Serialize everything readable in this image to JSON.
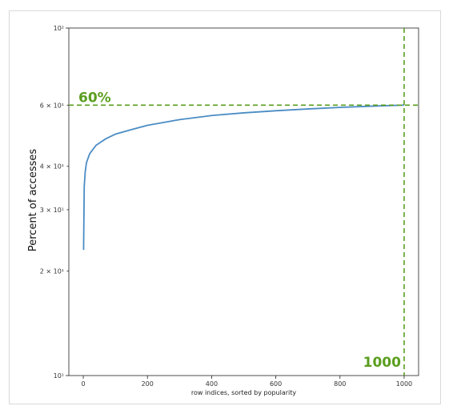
{
  "chart_data": {
    "type": "line",
    "xlabel": "row indices, sorted by popularity",
    "ylabel": "Percent of accesses",
    "xlim": [
      -45,
      1045
    ],
    "ylim": [
      10,
      100
    ],
    "yscale": "log",
    "grid": false,
    "x_ticks": [
      0,
      200,
      400,
      600,
      800,
      1000
    ],
    "x_tick_labels": [
      "0",
      "200",
      "400",
      "600",
      "800",
      "1000"
    ],
    "y_ticks": [
      10,
      20,
      30,
      40,
      60,
      100
    ],
    "y_tick_labels": [
      "10¹",
      "2 × 10¹",
      "3 × 10¹",
      "4 × 10¹",
      "6 × 10¹",
      "10²"
    ],
    "series": [
      {
        "color": "#4a8cc4",
        "x": [
          1,
          3,
          6,
          10,
          20,
          40,
          70,
          100,
          150,
          200,
          300,
          400,
          500,
          600,
          700,
          800,
          900,
          1000
        ],
        "y": [
          23,
          35,
          38.5,
          41,
          43.5,
          46,
          48,
          49.5,
          51,
          52.5,
          54.5,
          56,
          57,
          57.8,
          58.5,
          59.1,
          59.6,
          60
        ]
      }
    ],
    "reference_lines": [
      {
        "orientation": "horizontal",
        "value": 60,
        "label": "60%",
        "color": "#5a9e1e",
        "style": "dashed"
      },
      {
        "orientation": "vertical",
        "value": 1000,
        "label": "1000",
        "color": "#5a9e1e",
        "style": "dashed"
      }
    ]
  }
}
